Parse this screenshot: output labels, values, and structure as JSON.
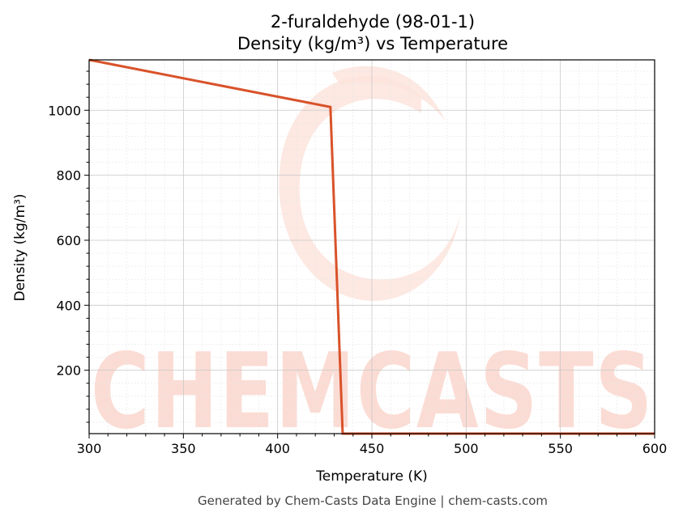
{
  "chart_data": {
    "type": "line",
    "title": "2-furaldehyde (98-01-1)",
    "subtitle": "Density (kg/m³) vs Temperature",
    "xlabel": "Temperature (K)",
    "ylabel": "Density (kg/m³)",
    "xlim": [
      300,
      600
    ],
    "ylim": [
      5,
      1155
    ],
    "xticks": [
      300,
      350,
      400,
      450,
      500,
      550,
      600
    ],
    "yticks": [
      200,
      400,
      600,
      800,
      1000
    ],
    "grid": true,
    "legend": "none",
    "series": [
      {
        "color": "#d9522a",
        "x": [
          300,
          428,
          434.5,
          600
        ],
        "y": [
          1155,
          1010,
          5,
          5
        ]
      }
    ]
  },
  "watermark": {
    "text": "CHEMCASTS",
    "color": "#fbdcd4"
  },
  "footer": "Generated by Chem-Casts Data Engine | chem-casts.com"
}
